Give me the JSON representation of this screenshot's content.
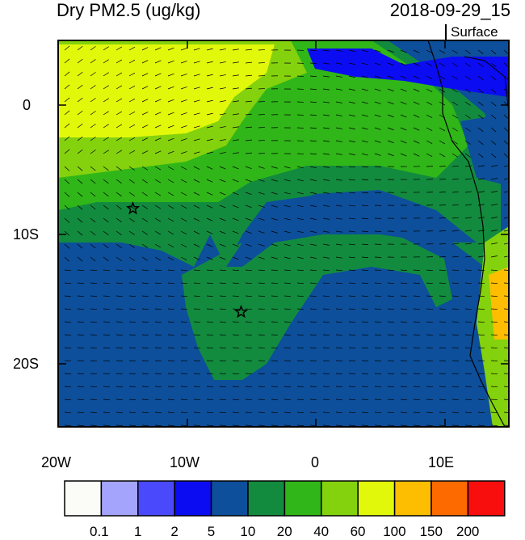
{
  "plot": {
    "title": "Dry PM2.5 (ug/kg)",
    "datetime": "2018-09-29_15",
    "level": "Surface"
  },
  "axes": {
    "x_ticks": [
      "20W",
      "10W",
      "0",
      "10E"
    ],
    "y_ticks": [
      "0",
      "10S",
      "20S"
    ]
  },
  "colorbar": {
    "labels": [
      "0.1",
      "1",
      "2",
      "5",
      "10",
      "20",
      "40",
      "60",
      "100",
      "150",
      "200"
    ],
    "colors": [
      "#fbfbf8",
      "#a4a4fc",
      "#4a4afc",
      "#0c0cf2",
      "#0d4f9a",
      "#138b3e",
      "#30b618",
      "#84d10d",
      "#e2f80a",
      "#fdbd00",
      "#fd6a00",
      "#f90e0e"
    ]
  },
  "markers": [
    {
      "name": "star-marker-1",
      "lon": -14.2,
      "lat": -8.0
    },
    {
      "name": "star-marker-2",
      "lon": -5.8,
      "lat": -16.0
    }
  ]
}
